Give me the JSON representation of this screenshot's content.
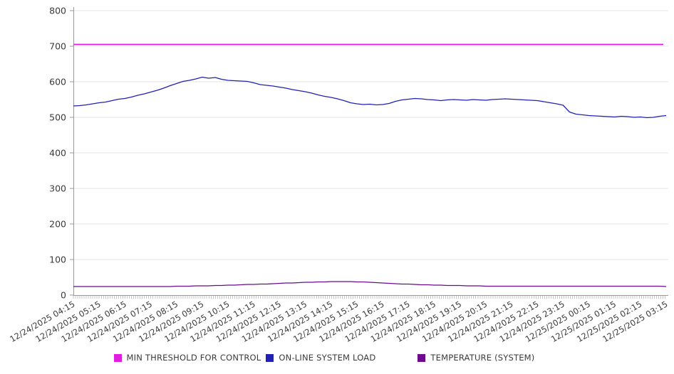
{
  "chart_data": {
    "type": "line",
    "title": "",
    "xlabel": "",
    "ylabel": "",
    "ylim": [
      0,
      800
    ],
    "y_ticks": [
      0,
      100,
      200,
      300,
      400,
      500,
      600,
      700,
      800
    ],
    "grid": "horizontal",
    "legend_position": "bottom",
    "x_interval_minutes": 15,
    "x_labels": [
      "12/24/2025 04:15",
      "12/24/2025 05:15",
      "12/24/2025 06:15",
      "12/24/2025 07:15",
      "12/24/2025 08:15",
      "12/24/2025 09:15",
      "12/24/2025 10:15",
      "12/24/2025 11:15",
      "12/24/2025 12:15",
      "12/24/2025 13:15",
      "12/24/2025 14:15",
      "12/24/2025 15:15",
      "12/24/2025 16:15",
      "12/24/2025 17:15",
      "12/24/2025 18:15",
      "12/24/2025 19:15",
      "12/24/2025 20:15",
      "12/24/2025 21:15",
      "12/24/2025 22:15",
      "12/24/2025 23:15",
      "12/25/2025 00:15",
      "12/25/2025 01:15",
      "12/25/2025 02:15",
      "12/25/2025 03:15"
    ],
    "series": [
      {
        "name": "MIN THRESHOLD FOR CONTROL",
        "color": "#df1edf",
        "constant": 705
      },
      {
        "name": "ON-LINE SYSTEM LOAD",
        "color": "#2121b4",
        "values": [
          532,
          533,
          535,
          538,
          541,
          543,
          547,
          551,
          553,
          557,
          562,
          566,
          571,
          576,
          582,
          589,
          595,
          601,
          604,
          608,
          613,
          610,
          612,
          607,
          604,
          603,
          602,
          601,
          597,
          592,
          590,
          588,
          585,
          582,
          578,
          575,
          572,
          568,
          563,
          559,
          556,
          552,
          547,
          541,
          538,
          536,
          537,
          535,
          536,
          539,
          545,
          549,
          551,
          553,
          552,
          550,
          549,
          547,
          549,
          550,
          549,
          548,
          550,
          549,
          548,
          550,
          551,
          552,
          551,
          550,
          549,
          548,
          547,
          544,
          541,
          538,
          534,
          515,
          509,
          507,
          505,
          504,
          503,
          502,
          501,
          503,
          502,
          500,
          501,
          499,
          500,
          503,
          505
        ]
      },
      {
        "name": "TEMPERATURE (SYSTEM)",
        "color": "#6b0b8f",
        "values": [
          24,
          24,
          24,
          24,
          24,
          24,
          24,
          24,
          24,
          24,
          24,
          24,
          24,
          24,
          24,
          24,
          25,
          25,
          25,
          26,
          26,
          26,
          27,
          27,
          28,
          28,
          29,
          30,
          30,
          31,
          31,
          32,
          33,
          34,
          34,
          35,
          36,
          36,
          37,
          37,
          38,
          38,
          38,
          38,
          37,
          37,
          36,
          35,
          34,
          33,
          32,
          31,
          31,
          30,
          29,
          29,
          28,
          28,
          27,
          27,
          27,
          26,
          26,
          26,
          25,
          25,
          25,
          25,
          25,
          25,
          25,
          25,
          25,
          25,
          25,
          25,
          25,
          25,
          25,
          25,
          25,
          25,
          25,
          25,
          25,
          25,
          25,
          25,
          25,
          25,
          25,
          25,
          24
        ]
      }
    ]
  }
}
